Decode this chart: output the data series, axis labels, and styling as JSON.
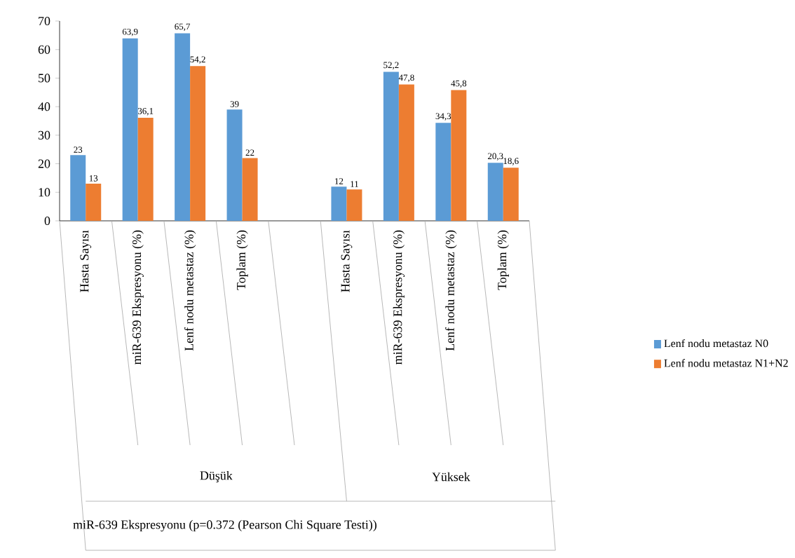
{
  "chart_data": {
    "type": "bar",
    "categories": [
      "Hasta Sayısı",
      "miR-639 Ekspresyonu (%)",
      "Lenf nodu metastaz (%)",
      "Toplam (%)",
      null,
      "Hasta Sayısı",
      "miR-639 Ekspresyonu (%)",
      "Lenf nodu metastaz (%)",
      "Toplam (%)"
    ],
    "series": [
      {
        "name": "Lenf nodu metastaz N0",
        "color": "#5b9bd5",
        "values": [
          23,
          63.9,
          65.7,
          39,
          null,
          12,
          52.2,
          34.3,
          20.3
        ],
        "value_labels": [
          "23",
          "63,9",
          "65,7",
          "39",
          null,
          "12",
          "52,2",
          "34,3",
          "20,3"
        ]
      },
      {
        "name": "Lenf nodu metastaz N1+N2",
        "color": "#ed7d31",
        "values": [
          13,
          36.1,
          54.2,
          22,
          null,
          11,
          47.8,
          45.8,
          18.6
        ],
        "value_labels": [
          "13",
          "36,1",
          "54,2",
          "22",
          null,
          "11",
          "47,8",
          "45,8",
          "18,6"
        ]
      }
    ],
    "annotations": [
      "Düşük",
      "Yüksek",
      "miR-639 Ekspresyonu (p=0.372 (Pearson Chi Square Testi))"
    ],
    "ylim": [
      0,
      70
    ],
    "yticks": [
      0,
      10,
      20,
      30,
      40,
      50,
      60,
      70
    ],
    "grid": false,
    "legend": "right"
  }
}
